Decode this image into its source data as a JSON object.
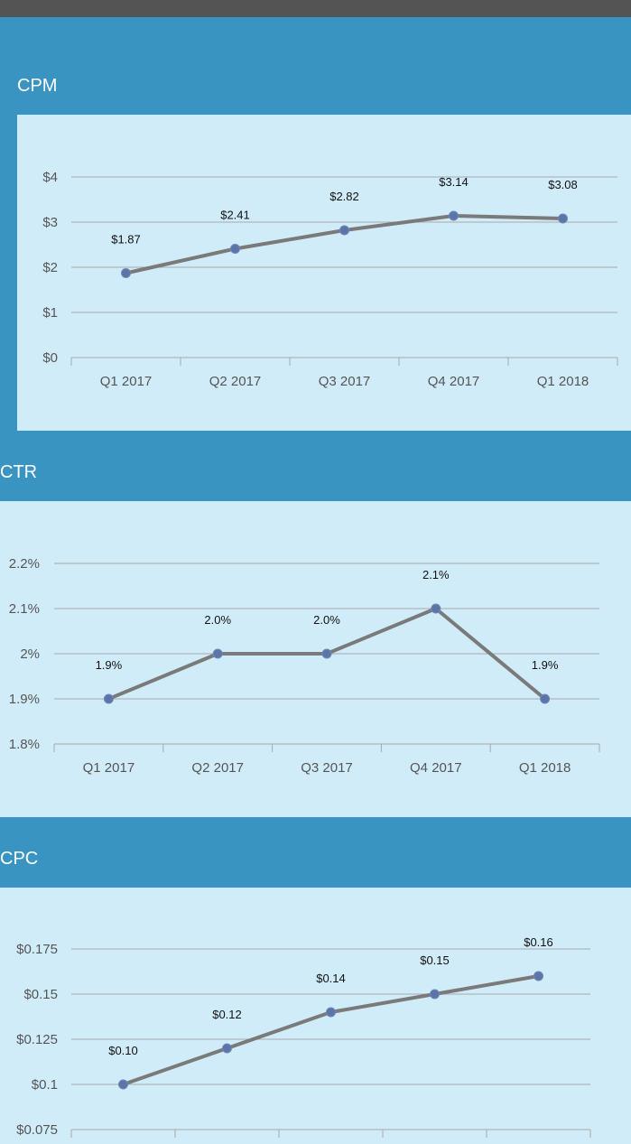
{
  "chart_data": [
    {
      "type": "line",
      "title": "CPM",
      "categories": [
        "Q1 2017",
        "Q2 2017",
        "Q3 2017",
        "Q4 2017",
        "Q1 2018"
      ],
      "values": [
        1.87,
        2.41,
        2.82,
        3.14,
        3.08
      ],
      "data_labels": [
        "$1.87",
        "$2.41",
        "$2.82",
        "$3.14",
        "$3.08"
      ],
      "yticks": [
        0,
        1,
        2,
        3,
        4
      ],
      "ytick_labels": [
        "$0",
        "$1",
        "$2",
        "$3",
        "$4"
      ],
      "ylim": [
        0,
        4
      ],
      "grid": true,
      "line_color": "#7a7a7a",
      "marker_color": "#5b75a8"
    },
    {
      "type": "line",
      "title": "CTR",
      "categories": [
        "Q1 2017",
        "Q2 2017",
        "Q3 2017",
        "Q4 2017",
        "Q1 2018"
      ],
      "values": [
        1.9,
        2.0,
        2.0,
        2.1,
        1.9
      ],
      "data_labels": [
        "1.9%",
        "2.0%",
        "2.0%",
        "2.1%",
        "1.9%"
      ],
      "yticks": [
        1.8,
        1.9,
        2.0,
        2.1,
        2.2
      ],
      "ytick_labels": [
        "1.8%",
        "1.9%",
        "2%",
        "2.1%",
        "2.2%"
      ],
      "ylim": [
        1.8,
        2.2
      ],
      "grid": true,
      "line_color": "#7a7a7a",
      "marker_color": "#5b75a8"
    },
    {
      "type": "line",
      "title": "CPC",
      "categories": [
        "",
        "",
        "",
        "",
        ""
      ],
      "values": [
        0.1,
        0.12,
        0.14,
        0.15,
        0.16
      ],
      "data_labels": [
        "$0.10",
        "$0.12",
        "$0.14",
        "$0.15",
        "$0.16"
      ],
      "yticks": [
        0.075,
        0.1,
        0.125,
        0.15,
        0.175
      ],
      "ytick_labels": [
        "$0.075",
        "$0.1",
        "$0.125",
        "$0.15",
        "$0.175"
      ],
      "ylim": [
        0.075,
        0.175
      ],
      "grid": true,
      "line_color": "#7a7a7a",
      "marker_color": "#5b75a8"
    }
  ]
}
